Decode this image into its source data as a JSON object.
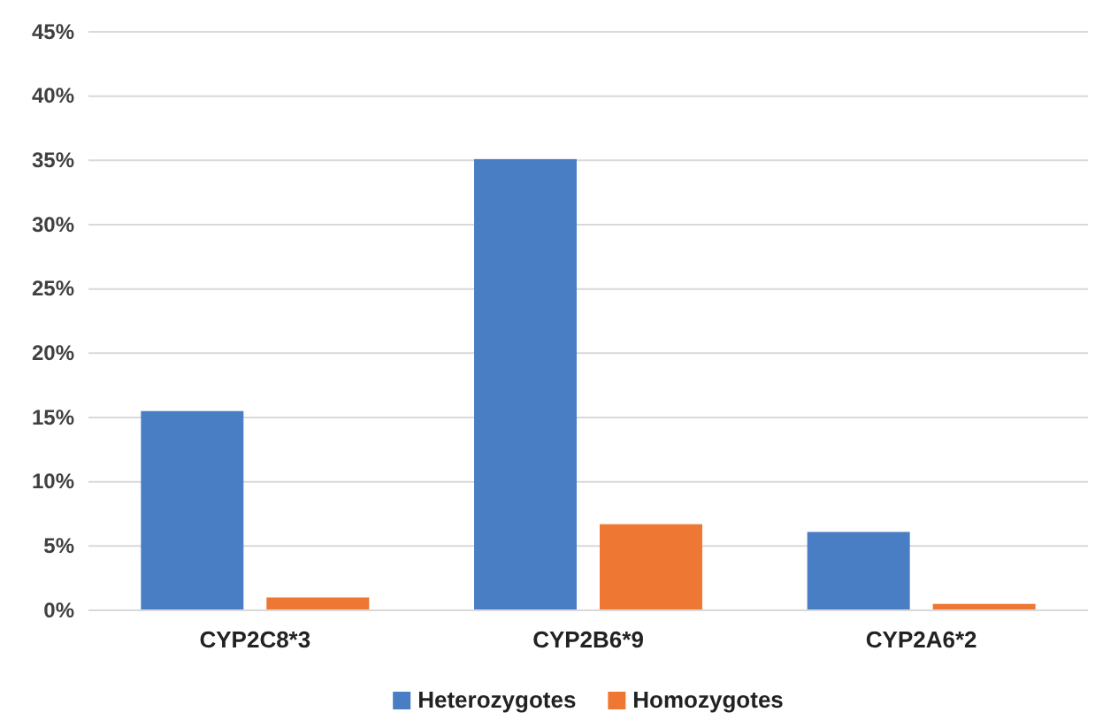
{
  "chart_data": {
    "type": "bar",
    "categories": [
      "CYP2C8*3",
      "CYP2B6*9",
      "CYP2A6*2"
    ],
    "series": [
      {
        "name": "Heterozygotes",
        "color": "#4a7ec4",
        "values": [
          15.5,
          35.1,
          6.1
        ]
      },
      {
        "name": "Homozygotes",
        "color": "#ee7734",
        "values": [
          1.0,
          6.7,
          0.5
        ]
      }
    ],
    "ylim": [
      0,
      45
    ],
    "yticks": [
      {
        "value": 0,
        "label": "0%"
      },
      {
        "value": 5,
        "label": "5%"
      },
      {
        "value": 10,
        "label": "10%"
      },
      {
        "value": 15,
        "label": "15%"
      },
      {
        "value": 20,
        "label": "20%"
      },
      {
        "value": 25,
        "label": "25%"
      },
      {
        "value": 30,
        "label": "30%"
      },
      {
        "value": 35,
        "label": "35%"
      },
      {
        "value": 40,
        "label": "40%"
      },
      {
        "value": 45,
        "label": "45%"
      }
    ],
    "grid": "y",
    "legend": "bottom"
  }
}
